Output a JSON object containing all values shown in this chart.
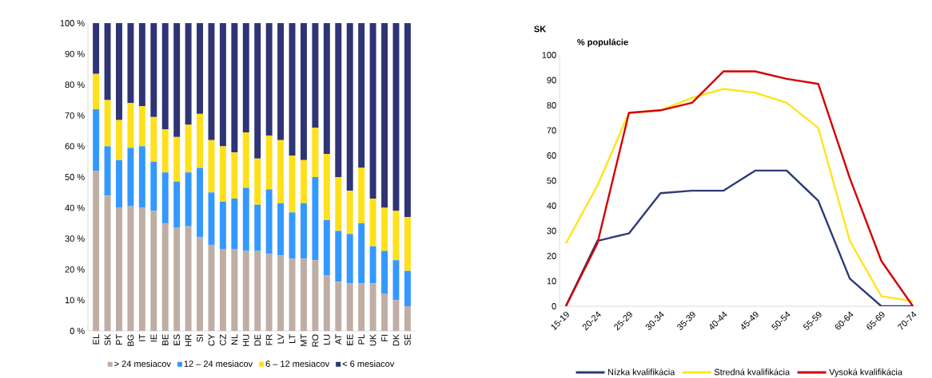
{
  "chart_data": [
    {
      "type": "bar",
      "stacked": true,
      "legend": "bottom",
      "categories": [
        "EL",
        "SK",
        "PT",
        "BG",
        "IT",
        "IE",
        "BE",
        "ES",
        "HR",
        "SI",
        "CY",
        "CZ",
        "NL",
        "HU",
        "DE",
        "FR",
        "LV",
        "LT",
        "MT",
        "RO",
        "LU",
        "AT",
        "EE",
        "PL",
        "UK",
        "FI",
        "DK",
        "SE"
      ],
      "ylim": [
        0,
        100
      ],
      "yticks": [
        {
          "value": 0,
          "label": "0 %"
        },
        {
          "value": 10,
          "label": "10 %"
        },
        {
          "value": 20,
          "label": "20 %"
        },
        {
          "value": 30,
          "label": "30 %"
        },
        {
          "value": 40,
          "label": "40 %"
        },
        {
          "value": 50,
          "label": "50 %"
        },
        {
          "value": 60,
          "label": "60 %"
        },
        {
          "value": 70,
          "label": "70 %"
        },
        {
          "value": 80,
          "label": "80 %"
        },
        {
          "value": 90,
          "label": "90 %"
        },
        {
          "value": 100,
          "label": "100 %"
        }
      ],
      "series": [
        {
          "name": "> 24 mesiacov",
          "color": "#bfaea4",
          "values": [
            52,
            44,
            40,
            40.5,
            40,
            39,
            35,
            33.5,
            34,
            30.5,
            28,
            26.5,
            26.5,
            26,
            26,
            25,
            24.5,
            23.5,
            23.5,
            23,
            18,
            16,
            15.5,
            15.5,
            15.5,
            12,
            10,
            8
          ]
        },
        {
          "name": "12 – 24 mesiacov",
          "color": "#3399ff",
          "values": [
            20,
            16,
            15.5,
            19,
            20,
            16,
            16.5,
            15,
            17.5,
            22.5,
            17,
            15.5,
            16.5,
            20.5,
            15,
            21,
            17,
            15,
            18,
            27,
            18,
            16.5,
            16,
            19.5,
            12,
            14,
            13,
            11.5
          ]
        },
        {
          "name": "6 – 12 mesiacov",
          "color": "#ffe01a",
          "values": [
            11.5,
            15,
            13,
            14.5,
            13,
            14.5,
            14,
            14.5,
            15.5,
            17.5,
            17,
            18,
            15,
            18,
            15,
            17.5,
            20.5,
            18.5,
            14,
            16,
            21.5,
            17.5,
            14,
            18,
            15.5,
            14,
            16,
            17.5
          ]
        },
        {
          "name": "< 6 mesiacov",
          "color": "#2e3474",
          "values": [
            16.5,
            25,
            31.5,
            26,
            27,
            30.5,
            34.5,
            37,
            33,
            29.5,
            38,
            40,
            42,
            35.5,
            44,
            36.5,
            38,
            43,
            44.5,
            34,
            42.5,
            50,
            54.5,
            47,
            57,
            60,
            61,
            63
          ]
        }
      ]
    },
    {
      "type": "line",
      "title": "SK",
      "ylabel": "% populácie",
      "legend": "bottom",
      "categories": [
        "15-19",
        "20-24",
        "25-29",
        "30-34",
        "35-39",
        "40-44",
        "45-49",
        "50-54",
        "55-59",
        "60-64",
        "65-69",
        "70-74"
      ],
      "ylim": [
        0,
        100
      ],
      "yticks": [
        0,
        10,
        20,
        30,
        40,
        50,
        60,
        70,
        80,
        90,
        100
      ],
      "series": [
        {
          "name": "Nízka kvalifikácia",
          "color": "#2e3a78",
          "values": [
            0,
            26,
            29,
            45,
            46,
            46,
            54,
            54,
            42,
            11,
            0,
            0
          ]
        },
        {
          "name": "Stredná kvalifikácia",
          "color": "#ffe51a",
          "values": [
            25,
            48,
            77,
            78,
            83,
            86.5,
            85,
            81,
            71,
            26,
            4,
            2
          ]
        },
        {
          "name": "Vysoká kvalifikácia",
          "color": "#d40000",
          "values": [
            0,
            25,
            77,
            78,
            81,
            93.5,
            93.5,
            90.5,
            88.5,
            51,
            18,
            0
          ]
        }
      ]
    }
  ]
}
